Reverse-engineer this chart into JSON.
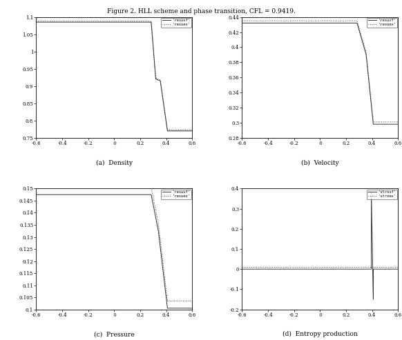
{
  "title": "Figure 2. HLL scheme and phase transition, CFL = 0.9419.",
  "subplots": [
    {
      "label": "(a)  Density",
      "ylabel_ticks": [
        0.75,
        0.8,
        0.85,
        0.9,
        0.95,
        1.0,
        1.05,
        1.1
      ],
      "ylim": [
        0.75,
        1.1
      ],
      "xlim": [
        -0.6,
        0.6
      ],
      "xticks": [
        -0.6,
        -0.4,
        -0.2,
        0.0,
        0.2,
        0.4,
        0.6
      ],
      "legend1": "'resuvf'",
      "legend2": "'resuex'",
      "line1_x": [
        -0.6,
        0.285,
        0.285,
        0.32,
        0.32,
        0.355,
        0.355,
        0.41,
        0.41,
        0.6
      ],
      "line1_y": [
        1.085,
        1.085,
        1.085,
        0.92,
        0.92,
        0.915,
        0.915,
        0.77,
        0.77,
        0.77
      ],
      "line2_x": [
        -0.6,
        0.285,
        0.285,
        0.32,
        0.32,
        0.355,
        0.355,
        0.41,
        0.41,
        0.6
      ],
      "line2_y": [
        1.085,
        1.085,
        1.085,
        0.92,
        0.92,
        0.915,
        0.915,
        0.77,
        0.77,
        0.77
      ]
    },
    {
      "label": "(b)  Velocity",
      "ylabel_ticks": [
        0.28,
        0.3,
        0.32,
        0.34,
        0.36,
        0.38,
        0.4,
        0.42,
        0.44
      ],
      "ylim": [
        0.28,
        0.44
      ],
      "xlim": [
        -0.6,
        0.6
      ],
      "xticks": [
        -0.6,
        -0.4,
        -0.2,
        0.0,
        0.2,
        0.4,
        0.6
      ],
      "legend1": "'resuvf'",
      "legend2": "'resuex'",
      "line1_x": [
        -0.6,
        0.285,
        0.285,
        0.355,
        0.355,
        0.41,
        0.41,
        0.6
      ],
      "line1_y": [
        0.432,
        0.432,
        0.432,
        0.39,
        0.39,
        0.298,
        0.298,
        0.298
      ],
      "line2_x": [
        -0.6,
        0.285,
        0.285,
        0.355,
        0.355,
        0.41,
        0.41,
        0.6
      ],
      "line2_y": [
        0.432,
        0.432,
        0.432,
        0.39,
        0.39,
        0.298,
        0.298,
        0.298
      ]
    },
    {
      "label": "(c)  Pressure",
      "ylabel_ticks": [
        0.1,
        0.105,
        0.11,
        0.115,
        0.12,
        0.125,
        0.13,
        0.135,
        0.14,
        0.145,
        0.15
      ],
      "ylim": [
        0.1,
        0.15
      ],
      "xlim": [
        -0.6,
        0.6
      ],
      "xticks": [
        -0.6,
        -0.4,
        -0.2,
        0.0,
        0.2,
        0.4,
        0.6
      ],
      "legend1": "'resuvf'",
      "legend2": "'resuex'",
      "line1_x": [
        -0.6,
        0.285,
        0.285,
        0.34,
        0.34,
        0.41,
        0.41,
        0.6
      ],
      "line1_y": [
        0.1475,
        0.1475,
        0.1475,
        0.1325,
        0.1325,
        0.1005,
        0.1005,
        0.1005
      ],
      "line2_x": [
        -0.6,
        0.285,
        0.285,
        0.34,
        0.34,
        0.41,
        0.41,
        0.6
      ],
      "line2_y": [
        0.1475,
        0.1475,
        0.1475,
        0.1325,
        0.1325,
        0.1005,
        0.1005,
        0.1005
      ]
    },
    {
      "label": "(d)  Entropy production",
      "ylabel_ticks": [
        -0.2,
        -0.1,
        0.0,
        0.1,
        0.2,
        0.3,
        0.4
      ],
      "ylim": [
        -0.2,
        0.4
      ],
      "xlim": [
        -0.6,
        0.6
      ],
      "xticks": [
        -0.6,
        -0.4,
        -0.2,
        0.0,
        0.2,
        0.4,
        0.6
      ],
      "legend1": "'strosf'",
      "legend2": "'stroex'",
      "line1_x": [
        -0.6,
        0.395,
        0.395,
        0.395,
        0.41,
        0.41,
        0.6
      ],
      "line1_y": [
        0.0,
        0.0,
        0.38,
        0.38,
        -0.15,
        0.0,
        0.0
      ],
      "line2_x": [
        -0.6,
        0.6
      ],
      "line2_y": [
        0.0,
        0.0
      ]
    }
  ]
}
